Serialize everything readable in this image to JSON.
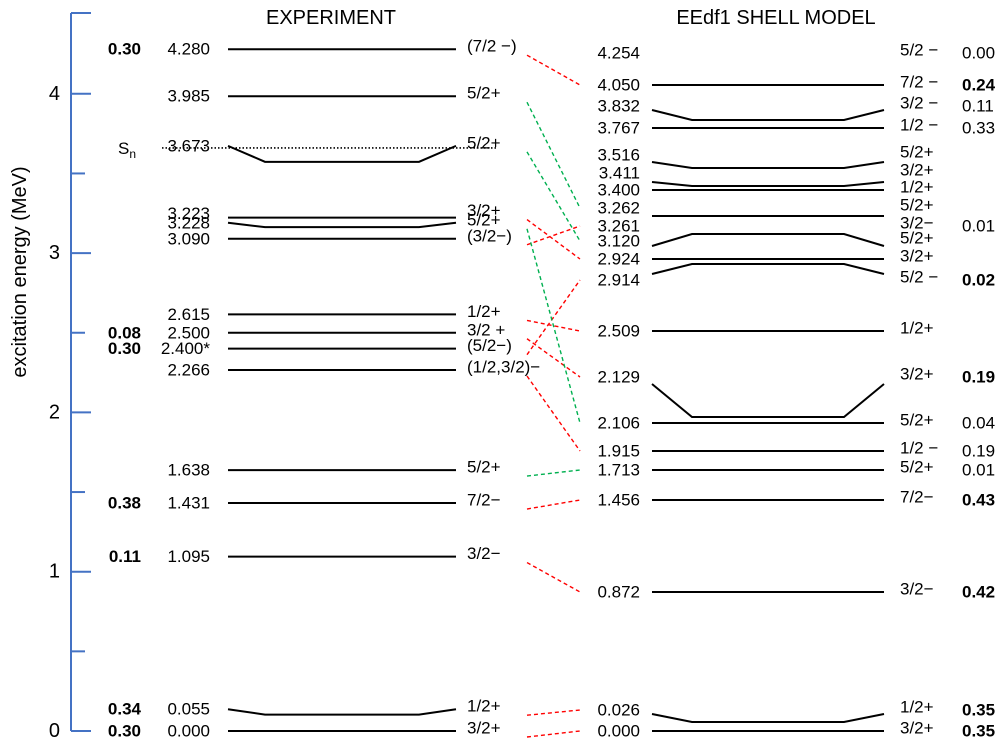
{
  "titles": {
    "experiment": "EXPERIMENT",
    "model": "EEdf1 SHELL MODEL"
  },
  "axis": {
    "label": "excitation energy (MeV)",
    "ticks": [
      "0",
      "1",
      "2",
      "3",
      "4"
    ],
    "tick_values": [
      0,
      1,
      2,
      3,
      4
    ],
    "range": [
      0,
      4.45
    ],
    "color": "#4472c4"
  },
  "colors": {
    "level": "#000000",
    "negative_link": "#ff0000",
    "positive_link": "#00b050"
  },
  "separation": {
    "label": "S",
    "sub": "n",
    "energy": 3.66
  },
  "experiment_levels": [
    {
      "id": "e0",
      "energy": 0.0,
      "label": "0.000",
      "spin": "3/2+",
      "sf": "0.30"
    },
    {
      "id": "e1",
      "energy": 0.055,
      "label": "0.055",
      "spin": "1/2+",
      "sf": "0.34"
    },
    {
      "id": "e2",
      "energy": 1.095,
      "label": "1.095",
      "spin": "3/2−",
      "sf": "0.11"
    },
    {
      "id": "e3",
      "energy": 1.431,
      "label": "1.431",
      "spin": "7/2−",
      "sf": "0.38"
    },
    {
      "id": "e4",
      "energy": 1.638,
      "label": "1.638",
      "spin": "5/2+",
      "sf": ""
    },
    {
      "id": "e5",
      "energy": 2.266,
      "label": "2.266",
      "spin": "(1/2,3/2)−",
      "sf": ""
    },
    {
      "id": "e6",
      "energy": 2.4,
      "label": "2.400*",
      "spin": "(5/2−)",
      "sf": "0.30"
    },
    {
      "id": "e7",
      "energy": 2.5,
      "label": "2.500",
      "spin": "3/2 +",
      "sf": "0.08"
    },
    {
      "id": "e8",
      "energy": 2.615,
      "label": "2.615",
      "spin": "1/2+",
      "sf": ""
    },
    {
      "id": "e9",
      "energy": 3.09,
      "label": "3.090",
      "spin": "(3/2−)",
      "sf": ""
    },
    {
      "id": "e10",
      "energy": 3.223,
      "label": "3.223",
      "spin": "3/2+",
      "sf": ""
    },
    {
      "id": "e11",
      "energy": 3.228,
      "label": "3.228",
      "spin": "5/2+",
      "sf": ""
    },
    {
      "id": "e12",
      "energy": 3.673,
      "label": "3.673",
      "spin": "5/2+",
      "sf": ""
    },
    {
      "id": "e13",
      "energy": 3.985,
      "label": "3.985",
      "spin": "5/2+",
      "sf": ""
    },
    {
      "id": "e14",
      "energy": 4.28,
      "label": "4.280",
      "spin": "(7/2 −)",
      "sf": "0.30"
    }
  ],
  "model_levels": [
    {
      "id": "m0",
      "energy": 0.0,
      "label": "0.000",
      "spin": "3/2+",
      "sf": "0.35",
      "bold": true
    },
    {
      "id": "m1",
      "energy": 0.026,
      "label": "0.026",
      "spin": "1/2+",
      "sf": "0.35",
      "bold": true
    },
    {
      "id": "m2",
      "energy": 0.872,
      "label": "0.872",
      "spin": "3/2−",
      "sf": "0.42",
      "bold": true
    },
    {
      "id": "m3",
      "energy": 1.456,
      "label": "1.456",
      "spin": "7/2−",
      "sf": "0.43",
      "bold": true
    },
    {
      "id": "m4",
      "energy": 1.713,
      "label": "1.713",
      "spin": "5/2+",
      "sf": "0.01",
      "bold": false
    },
    {
      "id": "m5",
      "energy": 1.915,
      "label": "1.915",
      "spin": "1/2 −",
      "sf": "0.19",
      "bold": false
    },
    {
      "id": "m6",
      "energy": 2.106,
      "label": "2.106",
      "spin": "5/2+",
      "sf": "0.04",
      "bold": false
    },
    {
      "id": "m7",
      "energy": 2.129,
      "label": "2.129",
      "spin": "3/2+",
      "sf": "0.19",
      "bold": true
    },
    {
      "id": "m8",
      "energy": 2.509,
      "label": "2.509",
      "spin": "1/2+",
      "sf": "",
      "bold": false
    },
    {
      "id": "m9",
      "energy": 2.914,
      "label": "2.914",
      "spin": "5/2 −",
      "sf": "0.02",
      "bold": true
    },
    {
      "id": "m10",
      "energy": 2.924,
      "label": "2.924",
      "spin": "3/2+",
      "sf": "",
      "bold": false
    },
    {
      "id": "m11",
      "energy": 3.12,
      "label": "3.120",
      "spin": "5/2+",
      "sf": "",
      "bold": false
    },
    {
      "id": "m12",
      "energy": 3.261,
      "label": "3.261",
      "spin": "3/2−",
      "sf": "0.01",
      "bold": false
    },
    {
      "id": "m13",
      "energy": 3.262,
      "label": "3.262",
      "spin": "5/2+",
      "sf": "",
      "bold": false
    },
    {
      "id": "m14",
      "energy": 3.4,
      "label": "3.400",
      "spin": "1/2+",
      "sf": "",
      "bold": false
    },
    {
      "id": "m15",
      "energy": 3.411,
      "label": "3.411",
      "spin": "3/2+",
      "sf": "",
      "bold": false
    },
    {
      "id": "m16",
      "energy": 3.516,
      "label": "3.516",
      "spin": "5/2+",
      "sf": "",
      "bold": false
    },
    {
      "id": "m17",
      "energy": 3.767,
      "label": "3.767",
      "spin": "1/2 −",
      "sf": "0.33",
      "bold": false
    },
    {
      "id": "m18",
      "energy": 3.832,
      "label": "3.832",
      "spin": "3/2 −",
      "sf": "0.11",
      "bold": false
    },
    {
      "id": "m19",
      "energy": 4.05,
      "label": "4.050",
      "spin": "7/2 −",
      "sf": "0.24",
      "bold": true
    },
    {
      "id": "m20",
      "energy": 4.254,
      "label": "4.254",
      "spin": "5/2 −",
      "sf": "0.00",
      "bold": false
    }
  ],
  "links": [
    {
      "from": "e0",
      "to": "m0",
      "kind": "negative"
    },
    {
      "from": "e1",
      "to": "m1",
      "kind": "negative"
    },
    {
      "from": "e2",
      "to": "m2",
      "kind": "negative"
    },
    {
      "from": "e3",
      "to": "m3",
      "kind": "negative"
    },
    {
      "from": "e4",
      "to": "m4",
      "kind": "positive"
    },
    {
      "from": "e5",
      "to": "m5",
      "kind": "negative"
    },
    {
      "from": "e6",
      "to": "m9",
      "kind": "negative"
    },
    {
      "from": "e7",
      "to": "m7",
      "kind": "negative"
    },
    {
      "from": "e8",
      "to": "m8",
      "kind": "negative"
    },
    {
      "from": "e9",
      "to": "m12",
      "kind": "negative"
    },
    {
      "from": "e10",
      "to": "m10",
      "kind": "negative"
    },
    {
      "from": "e11",
      "to": "m6",
      "kind": "positive"
    },
    {
      "from": "e12",
      "to": "m11",
      "kind": "positive"
    },
    {
      "from": "e13",
      "to": "m13",
      "kind": "positive"
    },
    {
      "from": "e14",
      "to": "m19",
      "kind": "negative"
    }
  ]
}
